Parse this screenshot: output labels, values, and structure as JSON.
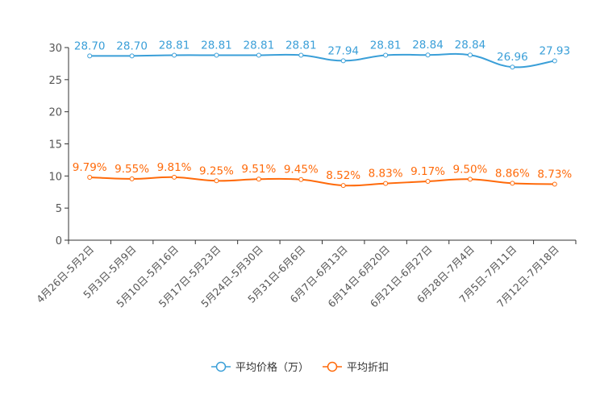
{
  "chart_data": {
    "type": "line",
    "title": "",
    "xlabel": "",
    "ylabel": "",
    "ylim": [
      0,
      30
    ],
    "yticks": [
      0,
      5,
      10,
      15,
      20,
      25,
      30
    ],
    "grid": false,
    "legend_position": "bottom-center",
    "categories": [
      "4月26日-5月2日",
      "5月3日-5月9日",
      "5月10日-5月16日",
      "5月17日-5月23日",
      "5月24日-5月30日",
      "5月31日-6月6日",
      "6月7日-6月13日",
      "6月14日-6月20日",
      "6月21日-6月27日",
      "6月28日-7月4日",
      "7月5日-7月11日",
      "7月12日-7月18日"
    ],
    "series": [
      {
        "name": "平均价格（万）",
        "color": "#3a9fd8",
        "label_suffix": "",
        "values": [
          28.7,
          28.7,
          28.81,
          28.81,
          28.81,
          28.81,
          27.94,
          28.81,
          28.84,
          28.84,
          26.96,
          27.93
        ],
        "labels": [
          "28.70",
          "28.70",
          "28.81",
          "28.81",
          "28.81",
          "28.81",
          "27.94",
          "28.81",
          "28.84",
          "28.84",
          "26.96",
          "27.93"
        ]
      },
      {
        "name": "平均折扣",
        "color": "#ff6a0a",
        "label_suffix": "%",
        "values": [
          9.79,
          9.55,
          9.81,
          9.25,
          9.51,
          9.45,
          8.52,
          8.83,
          9.17,
          9.5,
          8.86,
          8.73
        ],
        "labels": [
          "9.79%",
          "9.55%",
          "9.81%",
          "9.25%",
          "9.51%",
          "9.45%",
          "8.52%",
          "8.83%",
          "9.17%",
          "9.50%",
          "8.86%",
          "8.73%"
        ]
      }
    ]
  }
}
